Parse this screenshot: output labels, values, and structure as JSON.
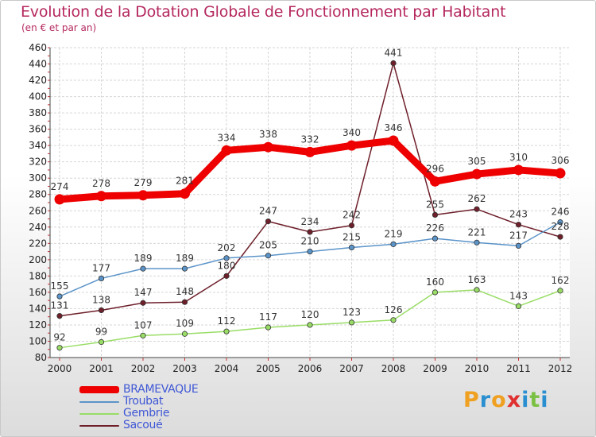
{
  "title": "Evolution de la Dotation Globale de Fonctionnement par Habitant",
  "subtitle": "(en € et par an)",
  "logo_text": "Proxiti",
  "chart_data": {
    "type": "line",
    "title": "Evolution de la Dotation Globale de Fonctionnement par Habitant",
    "ylabel": "(en € et par an)",
    "xlabel": "",
    "x": [
      "2000",
      "2001",
      "2002",
      "2003",
      "2004",
      "2005",
      "2006",
      "2007",
      "2008",
      "2009",
      "2010",
      "2011",
      "2012"
    ],
    "ylim": [
      80,
      460
    ],
    "yticks": [
      80,
      100,
      120,
      140,
      160,
      180,
      200,
      220,
      240,
      260,
      280,
      300,
      320,
      340,
      360,
      380,
      400,
      420,
      440,
      460
    ],
    "grid": true,
    "legend_position": "bottom-left",
    "series": [
      {
        "name": "Sacoué",
        "color": "#6e1f2a",
        "values": [
          131,
          138,
          147,
          148,
          180,
          247,
          234,
          242,
          441,
          255,
          262,
          243,
          228
        ]
      },
      {
        "name": "Gembrie",
        "color": "#99dd66",
        "values": [
          92,
          99,
          107,
          109,
          112,
          117,
          120,
          123,
          126,
          160,
          163,
          143,
          162
        ]
      },
      {
        "name": "Troubat",
        "color": "#5b94c9",
        "values": [
          155,
          177,
          189,
          189,
          202,
          205,
          210,
          215,
          219,
          226,
          221,
          217,
          246
        ]
      },
      {
        "name": "BRAMEVAQUE",
        "color": "#ee0000",
        "values": [
          274,
          278,
          279,
          281,
          334,
          338,
          332,
          340,
          346,
          296,
          305,
          310,
          306
        ]
      }
    ],
    "legend": [
      "BRAMEVAQUE",
      "Troubat",
      "Gembrie",
      "Sacoué"
    ]
  }
}
